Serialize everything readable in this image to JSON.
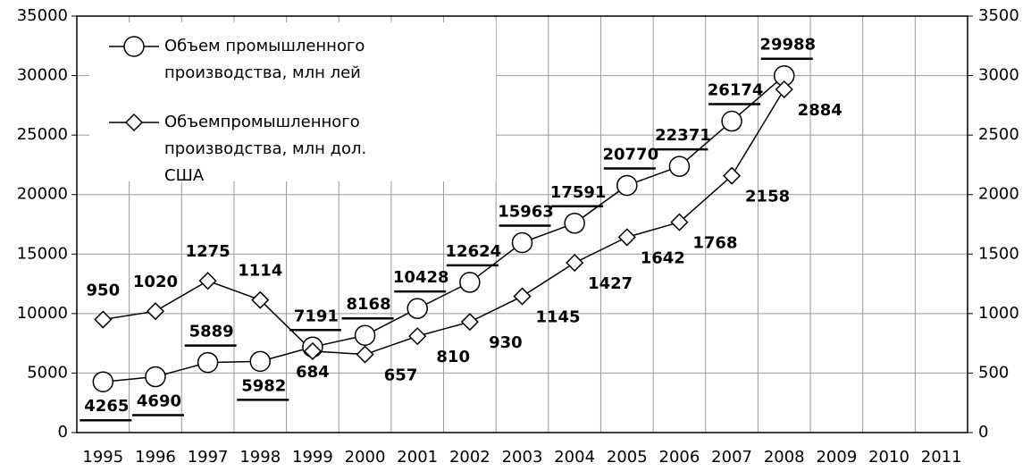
{
  "chart_data": {
    "type": "line",
    "categories": [
      "1995",
      "1996",
      "1997",
      "1998",
      "1999",
      "2000",
      "2001",
      "2002",
      "2003",
      "2004",
      "2005",
      "2006",
      "2007",
      "2008",
      "2009",
      "2010",
      "2011"
    ],
    "series": [
      {
        "name": "Объем промышленного производства, млн лей",
        "color": "#000000",
        "marker": "circle",
        "values": [
          4265,
          4690,
          5889,
          5982,
          7191,
          8168,
          10428,
          12624,
          15963,
          17591,
          20770,
          22371,
          26174,
          29988,
          null,
          null,
          null
        ]
      },
      {
        "name": "Объемпромышленного производства,  млн дол. США",
        "color": "#000000",
        "marker": "diamond",
        "axis": "y2",
        "values": [
          950,
          1020,
          1275,
          1114,
          684,
          657,
          810,
          930,
          1145,
          1427,
          1642,
          1768,
          2158,
          2884,
          null,
          null,
          null
        ]
      }
    ],
    "ylim": [
      0,
      35000
    ],
    "yticks": [
      0,
      5000,
      10000,
      15000,
      20000,
      25000,
      30000,
      35000
    ],
    "y2lim": [
      0,
      3500
    ],
    "y2ticks": [
      0,
      500,
      1000,
      1500,
      2000,
      2500,
      3000,
      3500
    ],
    "grid": true,
    "legend": "upper left"
  }
}
